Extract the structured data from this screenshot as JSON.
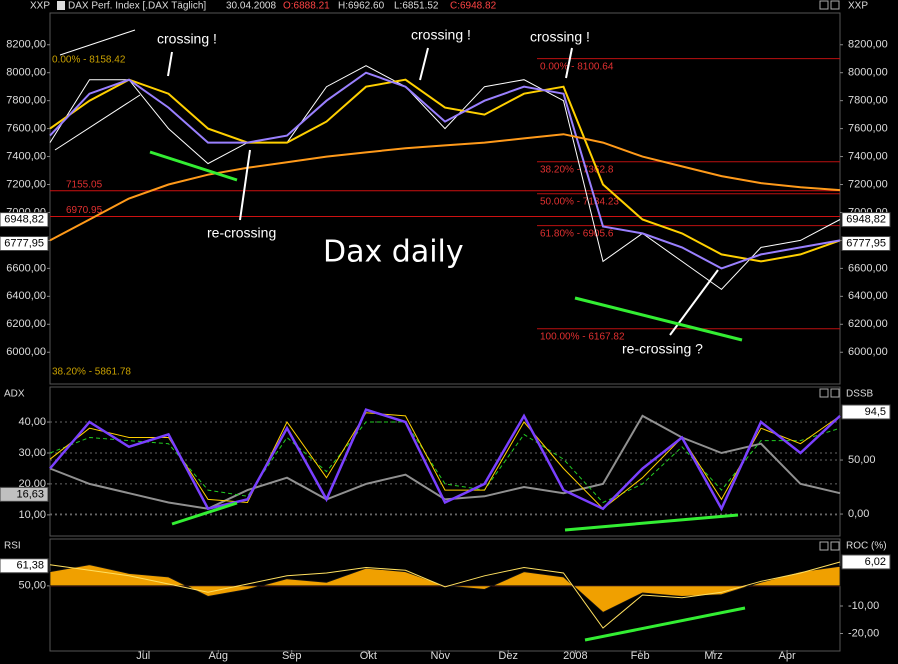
{
  "header": {
    "left_label": "XXP",
    "right_label": "XXP",
    "instrument": "DAX Perf. Index [.DAX  Täglich]",
    "date": "30.04.2008",
    "open": "O:6888.21",
    "high": "H:6962.60",
    "low": "L:6851.52",
    "close": "C:6948.82"
  },
  "chart_data": [
    {
      "type": "line",
      "xlim": [
        0,
        100
      ],
      "ylim": [
        5780,
        8420
      ],
      "y2lim": [
        5780,
        8420
      ],
      "x": [
        0,
        5,
        10,
        15,
        20,
        25,
        30,
        35,
        40,
        45,
        50,
        55,
        60,
        65,
        70,
        75,
        80,
        85,
        90,
        95,
        100
      ],
      "yticks": [
        {
          "value": 6000,
          "label": "6000,00"
        },
        {
          "value": 6200,
          "label": "6200,00"
        },
        {
          "value": 6400,
          "label": "6400,00"
        },
        {
          "value": 6600,
          "label": "6600,00"
        },
        {
          "value": 6800,
          "label": "6800,00"
        },
        {
          "value": 7000,
          "label": "7000,00"
        },
        {
          "value": 7200,
          "label": "7200,00"
        },
        {
          "value": 7400,
          "label": "7400,00"
        },
        {
          "value": 7600,
          "label": "7600,00"
        },
        {
          "value": 7800,
          "label": "7800,00"
        },
        {
          "value": 8000,
          "label": "8000,00"
        },
        {
          "value": 8200,
          "label": "8200,00"
        }
      ],
      "y2ticks": [
        {
          "value": 6000,
          "label": "6000,00"
        },
        {
          "value": 6200,
          "label": "6200,00"
        },
        {
          "value": 6400,
          "label": "6400,00"
        },
        {
          "value": 6600,
          "label": "6600,00"
        },
        {
          "value": 6800,
          "label": "6800,00"
        },
        {
          "value": 7000,
          "label": "7000,00"
        },
        {
          "value": 7200,
          "label": "7200,00"
        },
        {
          "value": 7400,
          "label": "7400,00"
        },
        {
          "value": 7600,
          "label": "7600,00"
        },
        {
          "value": 7800,
          "label": "7800,00"
        },
        {
          "value": 8000,
          "label": "8000,00"
        },
        {
          "value": 8200,
          "label": "8200,00"
        }
      ],
      "series": [
        {
          "color": "#ffffff",
          "width": 1,
          "values": [
            7500,
            7950,
            7950,
            7600,
            7350,
            7500,
            7500,
            7900,
            8050,
            7900,
            7600,
            7900,
            7950,
            7800,
            6650,
            6850,
            6650,
            6450,
            6750,
            6800,
            6950
          ]
        },
        {
          "color": "#ffd000",
          "width": 2,
          "values": [
            7600,
            7800,
            7950,
            7850,
            7600,
            7500,
            7500,
            7650,
            7900,
            7950,
            7750,
            7700,
            7850,
            7900,
            7200,
            6950,
            6850,
            6700,
            6650,
            6700,
            6800
          ]
        },
        {
          "color": "#9a80ff",
          "width": 2,
          "values": [
            7550,
            7850,
            7950,
            7750,
            7500,
            7500,
            7550,
            7800,
            8000,
            7900,
            7650,
            7800,
            7900,
            7850,
            6900,
            6850,
            6750,
            6600,
            6700,
            6750,
            6800
          ]
        },
        {
          "color": "#ff9a1a",
          "width": 2,
          "values": [
            6800,
            6950,
            7100,
            7200,
            7270,
            7320,
            7360,
            7400,
            7430,
            7460,
            7480,
            7500,
            7530,
            7560,
            7500,
            7400,
            7330,
            7260,
            7210,
            7180,
            7160
          ]
        }
      ],
      "support_levels": [
        {
          "value": 7155.05,
          "label": "7155.05"
        },
        {
          "value": 6970.95,
          "label": "6970.95"
        }
      ],
      "fibonacci_levels": [
        {
          "value": 8100.64,
          "label": "0.00% - 8100.64"
        },
        {
          "value": 7362.8,
          "label": "38.20% - 7362.8"
        },
        {
          "value": 7134.23,
          "label": "50.00% - 7134.23"
        },
        {
          "value": 6905.6,
          "label": "61.80% - 6905.6"
        },
        {
          "value": 6167.82,
          "label": "100.00% - 6167.82"
        }
      ],
      "price_markers": [
        {
          "value": 6948.82,
          "label": "6948,82",
          "color": "#ffffff"
        },
        {
          "value": 6777.95,
          "label": "6777,95",
          "color": "#ffffff"
        }
      ],
      "annotations": [
        "crossing !",
        "crossing !",
        "crossing !",
        "re-crossing",
        "re-crossing ?",
        "Dax daily",
        "0.00% - 8158.42",
        "38.20% - 5861.78"
      ]
    },
    {
      "type": "line",
      "title": "ADX",
      "y2_title": "DSSB",
      "xlim": [
        0,
        100
      ],
      "ylim": [
        3.5,
        51
      ],
      "y2lim": [
        -19.4,
        116.7
      ],
      "grid": true,
      "x": [
        0,
        5,
        10,
        15,
        20,
        25,
        30,
        35,
        40,
        45,
        50,
        55,
        60,
        65,
        70,
        75,
        80,
        85,
        90,
        95,
        100
      ],
      "yticks": [
        {
          "value": 10,
          "label": "10,00"
        },
        {
          "value": 20,
          "label": "20,00"
        },
        {
          "value": 30,
          "label": "30,00"
        },
        {
          "value": 40,
          "label": "40,00"
        }
      ],
      "y2ticks": [
        {
          "value": 0,
          "label": "0,00"
        },
        {
          "value": 50,
          "label": "50,00"
        }
      ],
      "series": [
        {
          "color": "#909090",
          "width": 2,
          "values": [
            25,
            20,
            17,
            14,
            12,
            18,
            22,
            15,
            20,
            23,
            15,
            16,
            19,
            17,
            20,
            42,
            35,
            30,
            33,
            20,
            17
          ]
        },
        {
          "color": "#22cc22",
          "width": 1,
          "dash": true,
          "values": [
            30,
            35,
            34,
            33,
            18,
            16,
            35,
            24,
            40,
            40,
            20,
            18,
            36,
            28,
            14,
            20,
            32,
            18,
            34,
            34,
            38
          ]
        },
        {
          "color": "#ffd000",
          "width": 1,
          "values": [
            28,
            38,
            35,
            35,
            15,
            14,
            40,
            22,
            43,
            42,
            18,
            18,
            40,
            25,
            12,
            22,
            35,
            15,
            38,
            33,
            42
          ]
        },
        {
          "color": "#7a40ff",
          "width": 2.5,
          "values": [
            25,
            40,
            32,
            36,
            12,
            15,
            38,
            15,
            44,
            40,
            14,
            20,
            42,
            18,
            12,
            25,
            35,
            12,
            40,
            30,
            42
          ]
        }
      ],
      "price_markers": [
        {
          "value": 16.63,
          "label": "16,63",
          "color": "#c0c0c0"
        },
        {
          "value": 94.5,
          "label": "94,5",
          "color": "#ffffff",
          "axis": "y2"
        }
      ]
    },
    {
      "type": "line",
      "title": "RSI",
      "y2_title": "ROC (%)",
      "xlim": [
        0,
        100
      ],
      "ylim": [
        13.6,
        76
      ],
      "y2lim": [
        -26,
        14
      ],
      "baseline": 50,
      "x": [
        0,
        5,
        10,
        15,
        20,
        25,
        30,
        35,
        40,
        45,
        50,
        55,
        60,
        65,
        70,
        75,
        80,
        85,
        90,
        95,
        100
      ],
      "yticks": [
        {
          "value": 50,
          "label": "50,00"
        }
      ],
      "y2ticks": [
        {
          "value": -10,
          "label": "-10,00"
        },
        {
          "value": -20,
          "label": "-20,00"
        }
      ],
      "xticks": [
        {
          "value": 11.8,
          "label": "Jul"
        },
        {
          "value": 21.3,
          "label": "Aug"
        },
        {
          "value": 30.6,
          "label": "Sep"
        },
        {
          "value": 40.3,
          "label": "Okt"
        },
        {
          "value": 49.4,
          "label": "Nov"
        },
        {
          "value": 58,
          "label": "Dez"
        },
        {
          "value": 66.5,
          "label": "2008"
        },
        {
          "value": 74.7,
          "label": "Feb"
        },
        {
          "value": 84,
          "label": "Mrz"
        },
        {
          "value": 93.3,
          "label": "Apr"
        }
      ],
      "series": [
        {
          "color": "#f0a000",
          "area": true,
          "values": [
            58,
            62,
            57,
            55,
            44,
            48,
            54,
            52,
            60,
            58,
            50,
            48,
            58,
            55,
            35,
            46,
            44,
            45,
            52,
            58,
            61
          ]
        },
        {
          "color": "#ffe060",
          "width": 1,
          "axis": "y2",
          "values": [
            5,
            3,
            1,
            -2,
            -5,
            -2,
            1,
            2,
            4,
            3,
            -3,
            1,
            4,
            2,
            -18,
            -6,
            -7,
            -5,
            -1,
            2,
            6
          ]
        }
      ],
      "price_markers": [
        {
          "value": 61.38,
          "label": "61,38",
          "color": "#ffffff"
        },
        {
          "value": 6.02,
          "label": "6,02",
          "color": "#ffffff",
          "axis": "y2"
        }
      ]
    }
  ]
}
